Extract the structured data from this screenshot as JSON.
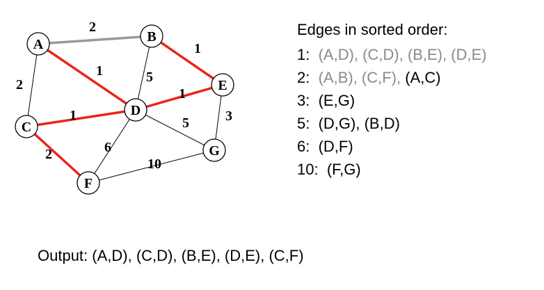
{
  "graph": {
    "colors": {
      "selected": "#e8251b",
      "rejected": "#999999",
      "normal": "#000000"
    },
    "nodes": [
      {
        "id": "A",
        "label": "A"
      },
      {
        "id": "B",
        "label": "B"
      },
      {
        "id": "C",
        "label": "C"
      },
      {
        "id": "D",
        "label": "D"
      },
      {
        "id": "E",
        "label": "E"
      },
      {
        "id": "F",
        "label": "F"
      },
      {
        "id": "G",
        "label": "G"
      }
    ],
    "edges": [
      {
        "from": "A",
        "to": "B",
        "weight": "2",
        "status": "rejected"
      },
      {
        "from": "A",
        "to": "D",
        "weight": "1",
        "status": "selected"
      },
      {
        "from": "A",
        "to": "C",
        "weight": "2",
        "status": "normal"
      },
      {
        "from": "B",
        "to": "E",
        "weight": "1",
        "status": "selected"
      },
      {
        "from": "B",
        "to": "D",
        "weight": "5",
        "status": "normal"
      },
      {
        "from": "C",
        "to": "D",
        "weight": "1",
        "status": "selected"
      },
      {
        "from": "D",
        "to": "E",
        "weight": "1",
        "status": "selected"
      },
      {
        "from": "E",
        "to": "G",
        "weight": "3",
        "status": "normal"
      },
      {
        "from": "D",
        "to": "G",
        "weight": "5",
        "status": "normal"
      },
      {
        "from": "C",
        "to": "F",
        "weight": "2",
        "status": "selected"
      },
      {
        "from": "D",
        "to": "F",
        "weight": "6",
        "status": "normal"
      },
      {
        "from": "F",
        "to": "G",
        "weight": "10",
        "status": "normal"
      }
    ]
  },
  "sorted_edges": {
    "title": "Edges in sorted order:",
    "rows": [
      {
        "key": "1:",
        "segments": [
          {
            "text": "(A,D), (C,D), (B,E), (D,E)",
            "style": "gray"
          }
        ]
      },
      {
        "key": "2:",
        "segments": [
          {
            "text": "(A,B), (C,F), ",
            "style": "gray"
          },
          {
            "text": "(A,C)",
            "style": "black"
          }
        ]
      },
      {
        "key": "3:",
        "segments": [
          {
            "text": "(E,G)",
            "style": "black"
          }
        ]
      },
      {
        "key": "5:",
        "segments": [
          {
            "text": "(D,G), (B,D)",
            "style": "black"
          }
        ]
      },
      {
        "key": "6:",
        "segments": [
          {
            "text": "(D,F)",
            "style": "black"
          }
        ]
      },
      {
        "key": "10:",
        "segments": [
          {
            "text": "(F,G)",
            "style": "black"
          }
        ]
      }
    ]
  },
  "output": {
    "text": "Output: (A,D), (C,D), (B,E), (D,E), (C,F)"
  }
}
